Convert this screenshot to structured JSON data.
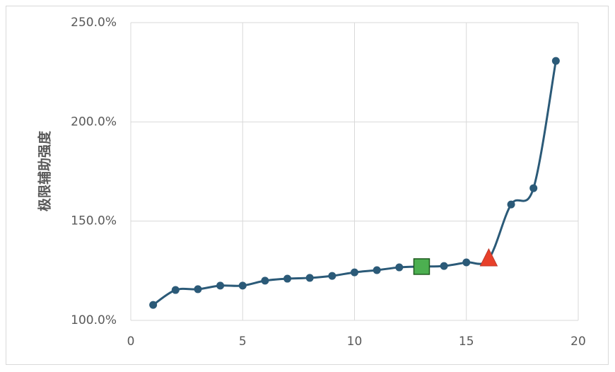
{
  "chart_data": {
    "type": "line",
    "y_label": "极限辅助强度",
    "x": [
      1,
      2,
      3,
      4,
      5,
      6,
      7,
      8,
      9,
      10,
      11,
      12,
      13,
      14,
      15,
      16,
      17,
      18,
      19
    ],
    "series": [
      {
        "color": "#2b5a78",
        "values": [
          107.8,
          115.3,
          115.7,
          117.5,
          117.5,
          120.0,
          121.0,
          121.4,
          122.4,
          124.2,
          125.3,
          126.7,
          127.1,
          127.4,
          129.2,
          131.0,
          158.4,
          166.6,
          230.7
        ]
      }
    ],
    "highlights": [
      {
        "index": 12,
        "shape": "square",
        "color": "#4caf50"
      },
      {
        "index": 15,
        "shape": "triangle",
        "color": "#e8402a"
      }
    ],
    "smooth": true,
    "xlim": [
      0,
      20
    ],
    "xticks": [
      0,
      5,
      10,
      15,
      20
    ],
    "ylim": [
      100,
      250
    ],
    "yticks": [
      {
        "value": 100,
        "label": "100.0%"
      },
      {
        "value": 150,
        "label": "150.0%"
      },
      {
        "value": 200,
        "label": "200.0%"
      },
      {
        "value": 250,
        "label": "250.0%"
      }
    ],
    "grid": true
  }
}
